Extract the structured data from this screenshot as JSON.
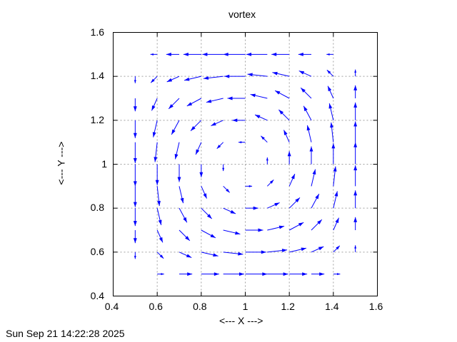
{
  "chart_data": {
    "type": "vector-field",
    "title": "vortex",
    "xlabel": "<--- X --->",
    "ylabel": "<--- Y --->",
    "xlim": [
      0.4,
      1.6
    ],
    "ylim": [
      0.4,
      1.6
    ],
    "xticks": [
      "0.4",
      "0.6",
      "0.8",
      "1",
      "1.2",
      "1.4",
      "1.6"
    ],
    "yticks": [
      "0.4",
      "0.6",
      "0.8",
      "1",
      "1.2",
      "1.4",
      "1.6"
    ],
    "grid": true,
    "color": "#0000ff",
    "x": [
      0.5,
      0.6,
      0.7,
      0.8,
      0.9,
      1.0,
      1.1,
      1.2,
      1.3,
      1.4,
      1.5
    ],
    "y": [
      0.5,
      0.6,
      0.7,
      0.8,
      0.9,
      1.0,
      1.1,
      1.2,
      1.3,
      1.4,
      1.5
    ],
    "u": [
      [
        0,
        0.31,
        0.59,
        0.81,
        0.95,
        1,
        0.95,
        0.81,
        0.59,
        0.31,
        0
      ],
      [
        0,
        0.29,
        0.56,
        0.77,
        0.9,
        0.95,
        0.9,
        0.77,
        0.56,
        0.29,
        0
      ],
      [
        0,
        0.25,
        0.48,
        0.65,
        0.77,
        0.81,
        0.77,
        0.65,
        0.48,
        0.25,
        0
      ],
      [
        0,
        0.18,
        0.35,
        0.48,
        0.56,
        0.59,
        0.56,
        0.48,
        0.35,
        0.18,
        0
      ],
      [
        0,
        0.1,
        0.18,
        0.25,
        0.29,
        0.31,
        0.29,
        0.25,
        0.18,
        0.1,
        0
      ],
      [
        0,
        0,
        0,
        0,
        0,
        0,
        0,
        0,
        0,
        0,
        0
      ],
      [
        0,
        -0.1,
        -0.18,
        -0.25,
        -0.29,
        -0.31,
        -0.29,
        -0.25,
        -0.18,
        -0.1,
        0
      ],
      [
        0,
        -0.18,
        -0.35,
        -0.48,
        -0.56,
        -0.59,
        -0.56,
        -0.48,
        -0.35,
        -0.18,
        0
      ],
      [
        0,
        -0.25,
        -0.48,
        -0.65,
        -0.77,
        -0.81,
        -0.77,
        -0.65,
        -0.48,
        -0.25,
        0
      ],
      [
        0,
        -0.29,
        -0.56,
        -0.77,
        -0.9,
        -0.95,
        -0.9,
        -0.77,
        -0.56,
        -0.29,
        0
      ],
      [
        0,
        -0.31,
        -0.59,
        -0.81,
        -0.95,
        -1,
        -0.95,
        -0.81,
        -0.59,
        -0.31,
        0
      ]
    ],
    "v": [
      [
        0,
        0,
        0,
        0,
        0,
        0,
        0,
        0,
        0,
        0,
        0
      ],
      [
        -0.31,
        -0.29,
        -0.25,
        -0.18,
        -0.1,
        0,
        0.1,
        0.18,
        0.25,
        0.29,
        0.31
      ],
      [
        -0.59,
        -0.56,
        -0.48,
        -0.35,
        -0.18,
        0,
        0.18,
        0.35,
        0.48,
        0.56,
        0.59
      ],
      [
        -0.81,
        -0.77,
        -0.65,
        -0.48,
        -0.25,
        0,
        0.25,
        0.48,
        0.65,
        0.77,
        0.81
      ],
      [
        -0.95,
        -0.9,
        -0.77,
        -0.56,
        -0.29,
        0,
        0.29,
        0.56,
        0.77,
        0.9,
        0.95
      ],
      [
        -1,
        -0.95,
        -0.81,
        -0.59,
        -0.31,
        0,
        0.31,
        0.59,
        0.81,
        0.95,
        1
      ],
      [
        -0.95,
        -0.9,
        -0.77,
        -0.56,
        -0.29,
        0,
        0.29,
        0.56,
        0.77,
        0.9,
        0.95
      ],
      [
        -0.81,
        -0.77,
        -0.65,
        -0.48,
        -0.25,
        0,
        0.25,
        0.48,
        0.65,
        0.77,
        0.81
      ],
      [
        -0.59,
        -0.56,
        -0.48,
        -0.35,
        -0.18,
        0,
        0.18,
        0.35,
        0.48,
        0.56,
        0.59
      ],
      [
        -0.31,
        -0.29,
        -0.25,
        -0.18,
        -0.1,
        0,
        0.1,
        0.18,
        0.25,
        0.29,
        0.31
      ],
      [
        0,
        0,
        0,
        0,
        0,
        0,
        0,
        0,
        0,
        0,
        0
      ]
    ]
  },
  "timestamp": "Sun Sep 21 14:22:28 2025"
}
